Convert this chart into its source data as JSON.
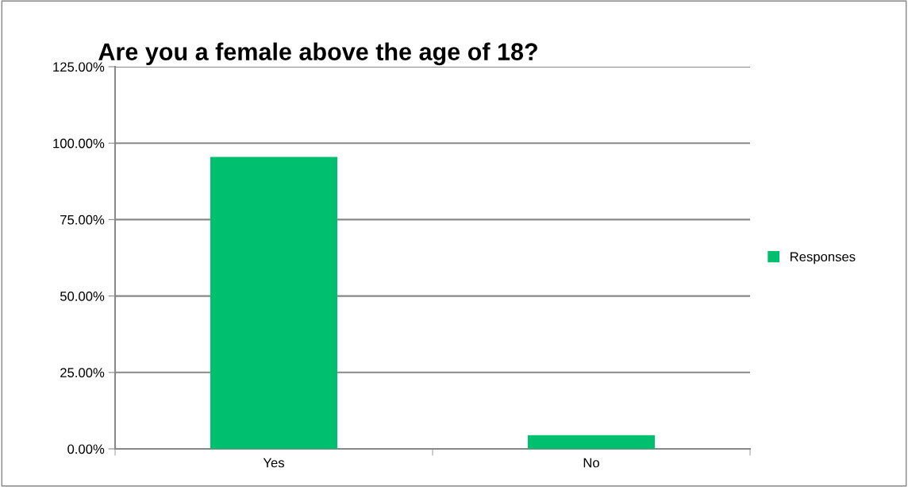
{
  "chart_data": {
    "type": "bar",
    "title": "Are you a female above the age of 18?",
    "categories": [
      "Yes",
      "No"
    ],
    "series": [
      {
        "name": "Responses",
        "color": "#00bf6f",
        "values": [
          95.5,
          4.5
        ]
      }
    ],
    "ylim": [
      0,
      125
    ],
    "yticks": [
      {
        "value": 0,
        "label": "0.00%"
      },
      {
        "value": 25,
        "label": "25.00%"
      },
      {
        "value": 50,
        "label": "50.00%"
      },
      {
        "value": 75,
        "label": "75.00%"
      },
      {
        "value": 100,
        "label": "100.00%"
      },
      {
        "value": 125,
        "label": "125.00%"
      }
    ],
    "grid": "y",
    "legend": "right"
  }
}
